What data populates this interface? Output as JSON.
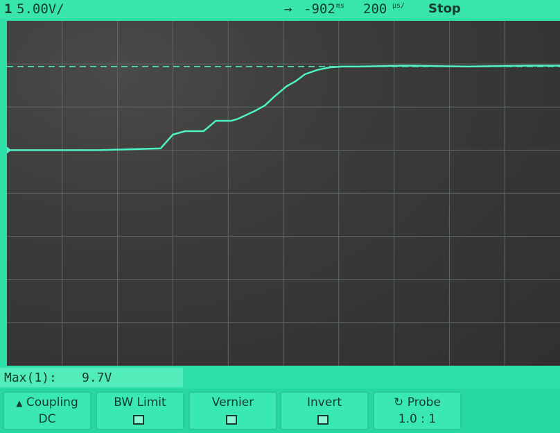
{
  "status_bar": {
    "channel_number": "1",
    "channel_scale": "5.00V/",
    "trigger_arrow": "→",
    "time_offset": "-902",
    "time_offset_unit": "ms",
    "time_scale": "200",
    "time_scale_unit": "μs/",
    "run_state": "Stop"
  },
  "measurement": {
    "label": "Max(1):",
    "value": "9.7V"
  },
  "softkeys": [
    {
      "icon": "up-triangle-icon",
      "line1": "Coupling",
      "line2": "DC"
    },
    {
      "line1": "BW Limit",
      "checkbox": true
    },
    {
      "line1": "Vernier",
      "checkbox": true
    },
    {
      "line1": "Invert",
      "checkbox": true
    },
    {
      "icon": "rotate-knob-icon",
      "line1": "Probe",
      "line2": "1.0 : 1"
    }
  ],
  "colors": {
    "screen_background": "#2ee0a8",
    "graticule_background": "#3a3b39",
    "trace": "#4ff2c4",
    "text": "#173c30"
  },
  "chart_data": {
    "type": "line",
    "title": "",
    "xlabel": "",
    "ylabel": "",
    "grid": true,
    "units": {
      "x": "s",
      "y": "V"
    },
    "xlim": [
      -0.0029,
      -0.0011
    ],
    "ylim": [
      -25,
      15
    ],
    "reference_level_dashed": 9.7,
    "series": [
      {
        "x": [
          -0.0029,
          -0.0026,
          -0.0024,
          -0.00236,
          -0.00232,
          -0.00226,
          -0.00225,
          -0.00222,
          -0.00217,
          -0.00215,
          -0.00209,
          -0.00206,
          -0.00203,
          -0.00199,
          -0.00196,
          -0.00193,
          -0.00189,
          -0.00185,
          -0.00181,
          -0.00175,
          -0.0016,
          -0.0014,
          -0.0012,
          -0.0011
        ],
        "y": [
          0.0,
          0.0,
          0.2,
          1.8,
          2.2,
          2.2,
          2.5,
          3.4,
          3.4,
          3.6,
          4.6,
          5.2,
          6.2,
          7.4,
          8.0,
          8.8,
          9.3,
          9.6,
          9.7,
          9.7,
          9.8,
          9.7,
          9.8,
          9.8
        ]
      }
    ]
  }
}
